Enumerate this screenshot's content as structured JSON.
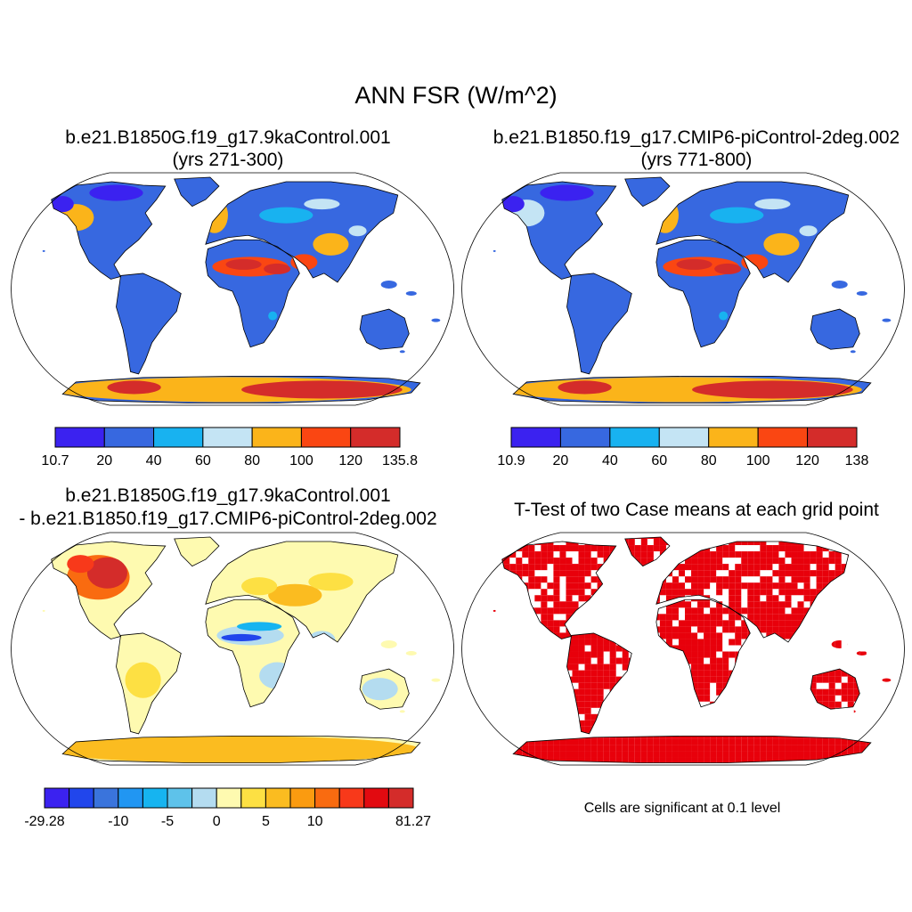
{
  "figure": {
    "title": "ANN FSR (W/m^2)",
    "panels": [
      {
        "title": "b.e21.B1850G.f19_g17.9kaControl.001",
        "subtitle": "(yrs 271-300)",
        "colorbar": {
          "colors": [
            "#3b22f0",
            "#3768e0",
            "#18b2f0",
            "#c4e4f4",
            "#fbb41a",
            "#fa4612",
            "#d42c2a"
          ],
          "labels": [
            "10.7",
            "20",
            "40",
            "60",
            "80",
            "100",
            "120",
            "135.8"
          ]
        }
      },
      {
        "title": "b.e21.B1850.f19_g17.CMIP6-piControl-2deg.002",
        "subtitle": "(yrs 771-800)",
        "colorbar": {
          "colors": [
            "#3b22f0",
            "#3768e0",
            "#18b2f0",
            "#c4e4f4",
            "#fbb41a",
            "#fa4612",
            "#d42c2a"
          ],
          "labels": [
            "10.9",
            "20",
            "40",
            "60",
            "80",
            "100",
            "120",
            "138"
          ]
        }
      },
      {
        "title": "b.e21.B1850G.f19_g17.9kaControl.001",
        "subtitle": "- b.e21.B1850.f19_g17.CMIP6-piControl-2deg.002",
        "colorbar": {
          "colors": [
            "#3b22f0",
            "#2146ec",
            "#3a74dc",
            "#2196f2",
            "#16b4f0",
            "#5ec2ea",
            "#b4dcf0",
            "#fefab0",
            "#fde043",
            "#fbbc20",
            "#fb9b10",
            "#f96b10",
            "#f8391a",
            "#e20a10",
            "#d42c2a"
          ],
          "labels": [
            "-29.28",
            "-10",
            "-5",
            "0",
            "5",
            "10",
            "81.27"
          ],
          "label_slots": [
            0,
            3,
            5,
            7,
            9,
            11,
            15
          ]
        }
      },
      {
        "title": "T-Test of two Case means at each grid point",
        "note": "Cells are significant at 0.1 level",
        "significant_color": "#e8000b"
      }
    ],
    "land_colors": {
      "ocean": "#ffffff",
      "outline": "#000000"
    }
  }
}
